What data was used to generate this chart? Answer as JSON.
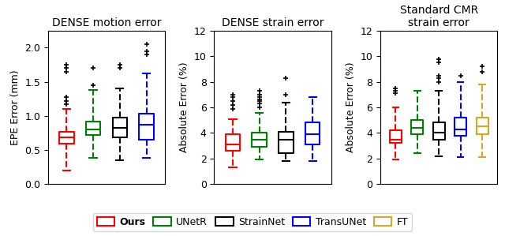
{
  "title1": "DENSE motion error",
  "title2": "DENSE strain error",
  "title3": "Standard CMR\nstrain error",
  "ylabel1": "EPE Error (mm)",
  "ylabel23": "Absolute Error (%)",
  "ylim1": [
    0.0,
    2.25
  ],
  "ylim23": [
    0,
    12
  ],
  "yticks1": [
    0.0,
    0.5,
    1.0,
    1.5,
    2.0
  ],
  "yticks23": [
    0,
    2,
    4,
    6,
    8,
    10,
    12
  ],
  "colors": [
    "red",
    "green",
    "black",
    "blue",
    "goldenrod"
  ],
  "legend_labels": [
    "Ours",
    "UNetR",
    "StrainNet",
    "TransUNet",
    "FT"
  ],
  "plot1": {
    "boxes": [
      {
        "q1": 0.59,
        "median": 0.68,
        "q3": 0.77,
        "whislo": 0.2,
        "whishi": 1.1,
        "fliers": [
          1.17,
          1.22,
          1.28,
          1.65,
          1.7,
          1.75
        ]
      },
      {
        "q1": 0.72,
        "median": 0.8,
        "q3": 0.92,
        "whislo": 0.38,
        "whishi": 1.38,
        "fliers": [
          1.45,
          1.7
        ]
      },
      {
        "q1": 0.68,
        "median": 0.83,
        "q3": 0.97,
        "whislo": 0.35,
        "whishi": 1.4,
        "fliers": [
          1.7,
          1.75
        ]
      },
      {
        "q1": 0.65,
        "median": 0.87,
        "q3": 1.03,
        "whislo": 0.38,
        "whishi": 1.62,
        "fliers": [
          1.9,
          1.95,
          2.05
        ]
      }
    ]
  },
  "plot2": {
    "boxes": [
      {
        "q1": 2.6,
        "median": 3.1,
        "q3": 3.9,
        "whislo": 1.3,
        "whishi": 5.1,
        "fliers": [
          5.9,
          6.2,
          6.5,
          6.8,
          7.0
        ]
      },
      {
        "q1": 2.9,
        "median": 3.5,
        "q3": 4.0,
        "whislo": 1.9,
        "whishi": 5.6,
        "fliers": [
          6.0,
          6.3,
          6.5,
          6.6,
          6.8,
          7.0,
          7.3
        ]
      },
      {
        "q1": 2.4,
        "median": 3.5,
        "q3": 4.1,
        "whislo": 1.8,
        "whishi": 6.4,
        "fliers": [
          7.0,
          8.3
        ]
      },
      {
        "q1": 3.1,
        "median": 3.9,
        "q3": 4.8,
        "whislo": 1.8,
        "whishi": 6.8,
        "fliers": []
      }
    ]
  },
  "plot3": {
    "boxes": [
      {
        "q1": 3.2,
        "median": 3.5,
        "q3": 4.2,
        "whislo": 1.9,
        "whishi": 6.0,
        "fliers": [
          7.1,
          7.3,
          7.5
        ]
      },
      {
        "q1": 3.9,
        "median": 4.4,
        "q3": 5.0,
        "whislo": 2.4,
        "whishi": 7.3,
        "fliers": []
      },
      {
        "q1": 3.5,
        "median": 4.0,
        "q3": 4.8,
        "whislo": 2.2,
        "whishi": 7.3,
        "fliers": [
          8.0,
          8.3,
          8.5,
          9.5,
          9.8
        ]
      },
      {
        "q1": 3.8,
        "median": 4.3,
        "q3": 5.2,
        "whislo": 2.1,
        "whishi": 8.0,
        "fliers": [
          8.5
        ]
      },
      {
        "q1": 3.9,
        "median": 4.5,
        "q3": 5.2,
        "whislo": 2.1,
        "whishi": 7.8,
        "fliers": [
          8.8,
          9.2
        ]
      }
    ]
  }
}
